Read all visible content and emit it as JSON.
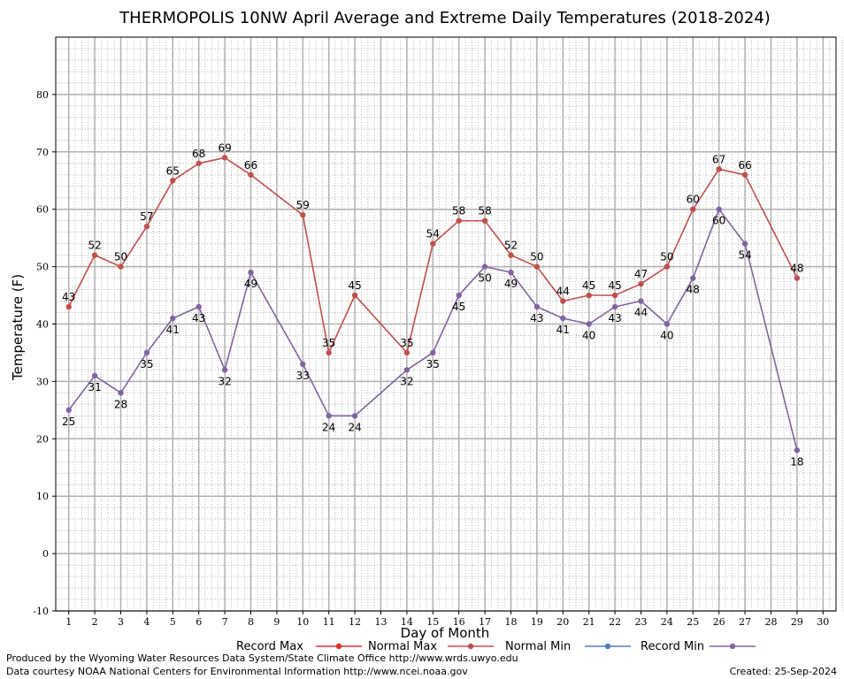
{
  "chart_data": {
    "type": "line",
    "title": "THERMOPOLIS 10NW April Average and Extreme Daily Temperatures (2018-2024)",
    "xlabel": "Day of Month",
    "ylabel": "Temperature (F)",
    "x_ticks": [
      "1",
      "2",
      "3",
      "4",
      "5",
      "6",
      "7",
      "8",
      "9",
      "10",
      "11",
      "12",
      "13",
      "14",
      "15",
      "16",
      "17",
      "18",
      "19",
      "20",
      "21",
      "22",
      "23",
      "24",
      "25",
      "26",
      "27",
      "28",
      "29",
      "30"
    ],
    "y_ticks": [
      "-10",
      "0",
      "10",
      "20",
      "30",
      "40",
      "50",
      "60",
      "70",
      "80"
    ],
    "xlim": [
      0.5,
      30.5
    ],
    "ylim": [
      -10,
      90
    ],
    "grid": true,
    "legend_position": "bottom",
    "legend": [
      {
        "name": "Record Max",
        "color": "#e03030",
        "shown_in_plot": false
      },
      {
        "name": "Normal Max",
        "color": "#c0504d",
        "shown_in_plot": true
      },
      {
        "name": "Normal Min",
        "color": "#4f81bd",
        "shown_in_plot": false
      },
      {
        "name": "Record Min",
        "color": "#8064a2",
        "shown_in_plot": true
      }
    ],
    "series": [
      {
        "name": "Normal Max",
        "color": "#c0504d",
        "label_position": "above",
        "points": [
          {
            "x": 1,
            "y": 43
          },
          {
            "x": 2,
            "y": 52
          },
          {
            "x": 3,
            "y": 50
          },
          {
            "x": 4,
            "y": 57
          },
          {
            "x": 5,
            "y": 65
          },
          {
            "x": 6,
            "y": 68
          },
          {
            "x": 7,
            "y": 69
          },
          {
            "x": 8,
            "y": 66
          },
          {
            "x": 10,
            "y": 59
          },
          {
            "x": 11,
            "y": 35
          },
          {
            "x": 12,
            "y": 45
          },
          {
            "x": 14,
            "y": 35
          },
          {
            "x": 15,
            "y": 54
          },
          {
            "x": 16,
            "y": 58
          },
          {
            "x": 17,
            "y": 58
          },
          {
            "x": 18,
            "y": 52
          },
          {
            "x": 19,
            "y": 50
          },
          {
            "x": 20,
            "y": 44
          },
          {
            "x": 21,
            "y": 45
          },
          {
            "x": 22,
            "y": 45
          },
          {
            "x": 23,
            "y": 47
          },
          {
            "x": 24,
            "y": 50
          },
          {
            "x": 25,
            "y": 60
          },
          {
            "x": 26,
            "y": 67
          },
          {
            "x": 27,
            "y": 66
          },
          {
            "x": 29,
            "y": 48
          }
        ]
      },
      {
        "name": "Record Min",
        "color": "#8064a2",
        "label_position": "below",
        "points": [
          {
            "x": 1,
            "y": 25
          },
          {
            "x": 2,
            "y": 31
          },
          {
            "x": 3,
            "y": 28
          },
          {
            "x": 4,
            "y": 35
          },
          {
            "x": 5,
            "y": 41
          },
          {
            "x": 6,
            "y": 43
          },
          {
            "x": 7,
            "y": 32
          },
          {
            "x": 8,
            "y": 49
          },
          {
            "x": 10,
            "y": 33
          },
          {
            "x": 11,
            "y": 24
          },
          {
            "x": 12,
            "y": 24
          },
          {
            "x": 14,
            "y": 32
          },
          {
            "x": 15,
            "y": 35
          },
          {
            "x": 16,
            "y": 45
          },
          {
            "x": 17,
            "y": 50
          },
          {
            "x": 18,
            "y": 49
          },
          {
            "x": 19,
            "y": 43
          },
          {
            "x": 20,
            "y": 41
          },
          {
            "x": 21,
            "y": 40
          },
          {
            "x": 22,
            "y": 43
          },
          {
            "x": 23,
            "y": 44
          },
          {
            "x": 24,
            "y": 40
          },
          {
            "x": 25,
            "y": 48
          },
          {
            "x": 26,
            "y": 60
          },
          {
            "x": 27,
            "y": 54
          },
          {
            "x": 29,
            "y": 18
          }
        ]
      }
    ]
  },
  "footer": {
    "produced_by": "Produced by the Wyoming Water Resources Data System/State Climate Office http://www.wrds.uwyo.edu",
    "courtesy": "Data courtesy NOAA National Centers for Environmental Information http://www.ncei.noaa.gov",
    "created": "Created:  25-Sep-2024"
  }
}
